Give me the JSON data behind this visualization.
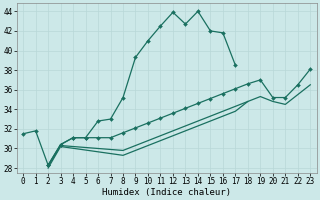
{
  "xlabel": "Humidex (Indice chaleur)",
  "bg_color": "#cce8e8",
  "grid_color": "#b8d8d8",
  "line_color": "#1a7060",
  "xlim": [
    -0.5,
    23.5
  ],
  "ylim": [
    27.5,
    44.8
  ],
  "xticks": [
    0,
    1,
    2,
    3,
    4,
    5,
    6,
    7,
    8,
    9,
    10,
    11,
    12,
    13,
    14,
    15,
    16,
    17,
    18,
    19,
    20,
    21,
    22,
    23
  ],
  "yticks": [
    28,
    30,
    32,
    34,
    36,
    38,
    40,
    42,
    44
  ],
  "curve1_x": [
    0,
    1,
    2,
    3,
    4,
    5,
    6,
    7,
    8,
    9,
    10,
    11,
    12,
    13,
    14,
    15,
    16,
    17
  ],
  "curve1_y": [
    31.5,
    31.8,
    28.3,
    30.4,
    31.1,
    31.1,
    32.8,
    33.0,
    35.2,
    39.3,
    41.0,
    42.5,
    43.9,
    42.7,
    44.0,
    42.0,
    41.8,
    38.5
  ],
  "curve2_x": [
    2,
    3,
    4,
    5,
    6,
    7,
    8,
    9,
    10,
    11,
    12,
    13,
    14,
    15,
    16,
    17,
    18,
    19,
    20,
    21,
    22,
    23
  ],
  "curve2_y": [
    28.3,
    30.4,
    31.1,
    31.1,
    31.1,
    31.1,
    31.6,
    32.1,
    32.6,
    33.1,
    33.6,
    34.1,
    34.6,
    35.1,
    35.6,
    36.1,
    36.6,
    37.0,
    35.2,
    35.2,
    36.5,
    38.1
  ],
  "curve3_x": [
    2,
    3,
    8,
    9,
    10,
    11,
    12,
    13,
    14,
    15,
    16,
    17,
    18,
    19,
    20,
    21,
    22,
    23
  ],
  "curve3_y": [
    28.2,
    30.3,
    29.8,
    30.3,
    30.8,
    31.3,
    31.8,
    32.3,
    32.8,
    33.3,
    33.8,
    34.3,
    34.8,
    35.3,
    34.8,
    34.5,
    35.5,
    36.5
  ],
  "curve4_x": [
    2,
    3,
    8,
    9,
    10,
    11,
    12,
    13,
    14,
    15,
    16,
    17,
    18
  ],
  "curve4_y": [
    28.0,
    30.2,
    29.3,
    29.8,
    30.3,
    30.8,
    31.3,
    31.8,
    32.3,
    32.8,
    33.3,
    33.8,
    34.8
  ],
  "marker_style": "D",
  "marker_size": 2.0,
  "linewidth": 0.9,
  "tick_fontsize": 5.5,
  "xlabel_fontsize": 6.5
}
